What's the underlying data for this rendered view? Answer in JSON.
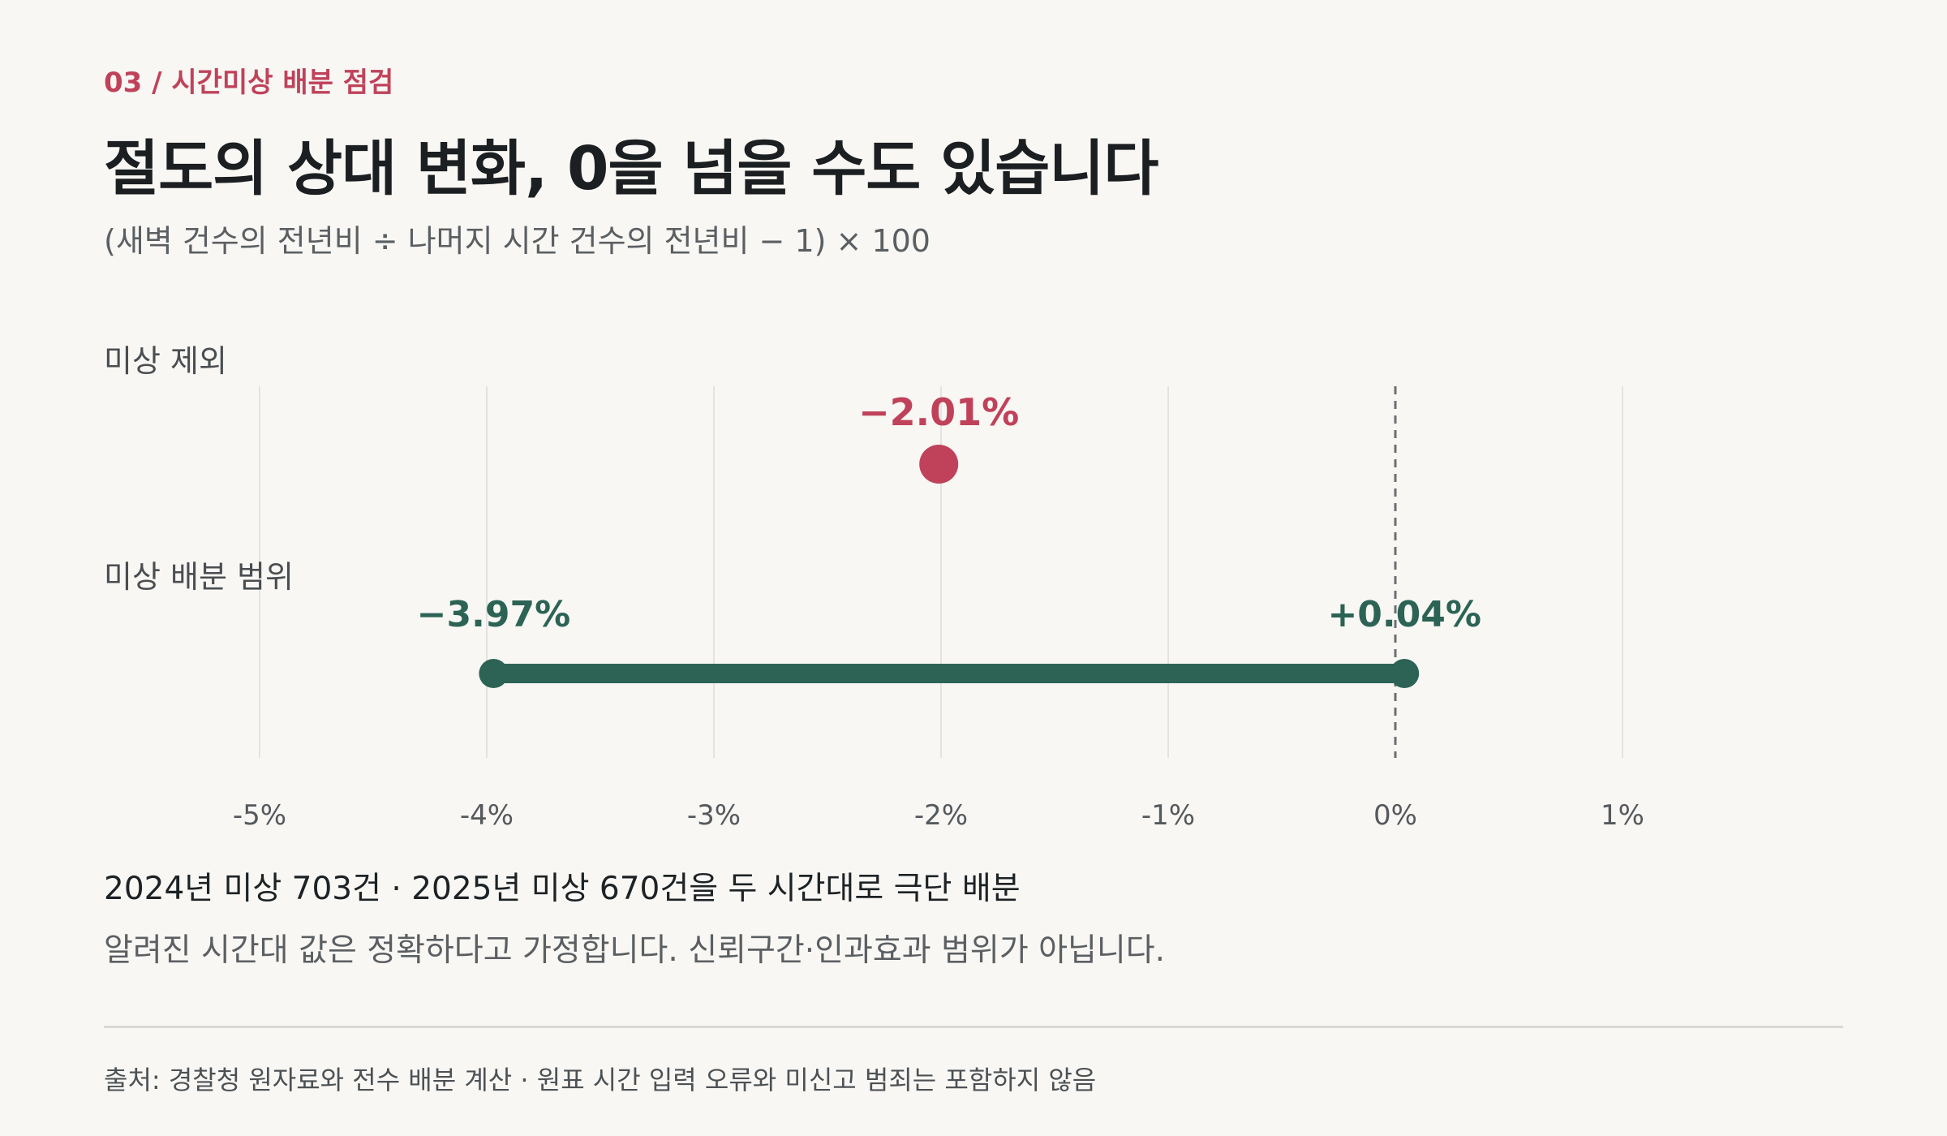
{
  "header": {
    "kicker": "03 / 시간미상 배분 점검",
    "title": "절도의 상대 변화, 0을 넘을 수도 있습니다",
    "subtitle": "(새벽 건수의 전년비 ÷ 나머지 시간 건수의 전년비 − 1) × 100"
  },
  "chart_data": {
    "type": "dot-range",
    "xlim": [
      -5.5,
      1.5
    ],
    "x_ticks": [
      -5,
      -4,
      -3,
      -2,
      -1,
      0,
      1
    ],
    "x_tick_labels": [
      "-5%",
      "-4%",
      "-3%",
      "-2%",
      "-1%",
      "0%",
      "1%"
    ],
    "reference_line": 0,
    "grid": true,
    "rows": [
      {
        "label": "미상 제외",
        "kind": "point",
        "value": -2.01,
        "value_label": "−2.01%",
        "color": "#c0425a"
      },
      {
        "label": "미상 배분 범위",
        "kind": "range",
        "min": -3.97,
        "max": 0.04,
        "min_label": "−3.97%",
        "max_label": "+0.04%",
        "color": "#2c6355"
      }
    ]
  },
  "notes": {
    "main": "2024년 미상 703건 · 2025년 미상 670건을 두 시간대로 극단 배분",
    "caveat": "알려진 시간대 값은 정확하다고 가정합니다. 신뢰구간·인과효과 범위가 아닙니다."
  },
  "footer": {
    "source": "출처: 경찰청 원자료와 전수 배분 계산 · 원표 시간 입력 오류와 미신고 범죄는 포함하지 않음"
  }
}
